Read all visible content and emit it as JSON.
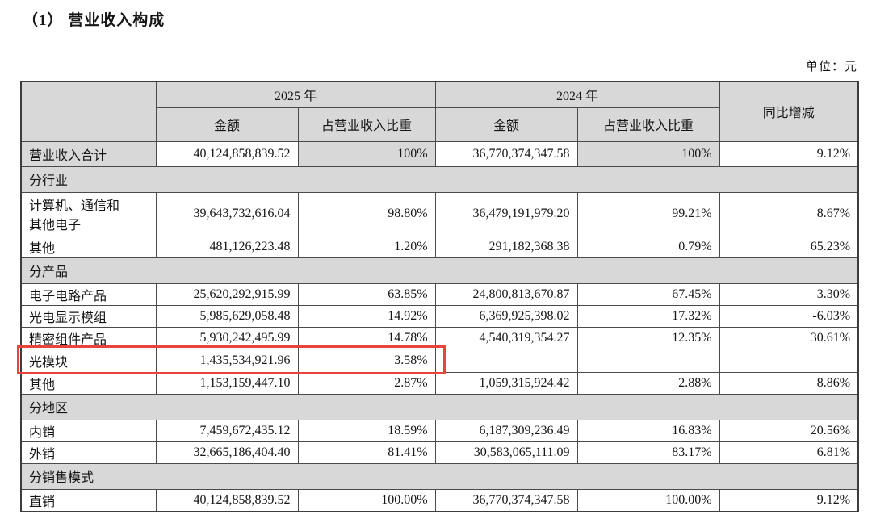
{
  "page": {
    "title": "（1） 营业收入构成",
    "unit_label": "单位：元"
  },
  "colors": {
    "header_bg": "#d8d8d8",
    "highlight_border": "#e8433c"
  },
  "table": {
    "header": {
      "year_2025": "2025 年",
      "year_2024": "2024 年",
      "yoy": "同比增减",
      "amount": "金额",
      "ratio": "占营业收入比重"
    },
    "rows": [
      {
        "type": "data",
        "label": "营业收入合计",
        "amount_2025": "40,124,858,839.52",
        "ratio_2025": "100%",
        "amount_2024": "36,770,374,347.58",
        "ratio_2024": "100%",
        "yoy": "9.12%"
      },
      {
        "type": "section",
        "label": "分行业"
      },
      {
        "type": "data",
        "label": "计算机、通信和\n其他电子",
        "amount_2025": "39,643,732,616.04",
        "ratio_2025": "98.80%",
        "amount_2024": "36,479,191,979.20",
        "ratio_2024": "99.21%",
        "yoy": "8.67%"
      },
      {
        "type": "data",
        "label": "其他",
        "amount_2025": "481,126,223.48",
        "ratio_2025": "1.20%",
        "amount_2024": "291,182,368.38",
        "ratio_2024": "0.79%",
        "yoy": "65.23%"
      },
      {
        "type": "section",
        "label": "分产品"
      },
      {
        "type": "data",
        "label": "电子电路产品",
        "amount_2025": "25,620,292,915.99",
        "ratio_2025": "63.85%",
        "amount_2024": "24,800,813,670.87",
        "ratio_2024": "67.45%",
        "yoy": "3.30%"
      },
      {
        "type": "data",
        "label": "光电显示模组",
        "amount_2025": "5,985,629,058.48",
        "ratio_2025": "14.92%",
        "amount_2024": "6,369,925,398.02",
        "ratio_2024": "17.32%",
        "yoy": "-6.03%"
      },
      {
        "type": "data",
        "label": "精密组件产品",
        "amount_2025": "5,930,242,495.99",
        "ratio_2025": "14.78%",
        "amount_2024": "4,540,319,354.27",
        "ratio_2024": "12.35%",
        "yoy": "30.61%"
      },
      {
        "type": "data",
        "label": "光模块",
        "amount_2025": "1,435,534,921.96",
        "ratio_2025": "3.58%",
        "amount_2024": "",
        "ratio_2024": "",
        "yoy": "",
        "highlighted": true
      },
      {
        "type": "data",
        "label": "其他",
        "amount_2025": "1,153,159,447.10",
        "ratio_2025": "2.87%",
        "amount_2024": "1,059,315,924.42",
        "ratio_2024": "2.88%",
        "yoy": "8.86%"
      },
      {
        "type": "section",
        "label": "分地区"
      },
      {
        "type": "data",
        "label": "内销",
        "amount_2025": "7,459,672,435.12",
        "ratio_2025": "18.59%",
        "amount_2024": "6,187,309,236.49",
        "ratio_2024": "16.83%",
        "yoy": "20.56%"
      },
      {
        "type": "data",
        "label": "外销",
        "amount_2025": "32,665,186,404.40",
        "ratio_2025": "81.41%",
        "amount_2024": "30,583,065,111.09",
        "ratio_2024": "83.17%",
        "yoy": "6.81%"
      },
      {
        "type": "section",
        "label": "分销售模式"
      },
      {
        "type": "data",
        "label": "直销",
        "amount_2025": "40,124,858,839.52",
        "ratio_2025": "100.00%",
        "amount_2024": "36,770,374,347.58",
        "ratio_2024": "100.00%",
        "yoy": "9.12%"
      }
    ]
  }
}
